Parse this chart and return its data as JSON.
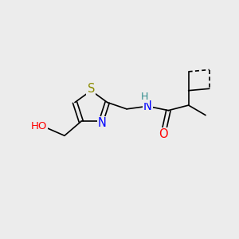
{
  "bg_color": "#ececec",
  "bond_color": "#000000",
  "bond_width": 1.2,
  "atom_colors": {
    "S": "#8b8b00",
    "N": "#0000ff",
    "O": "#ff0000",
    "H": "#2e8b8b",
    "C": "#000000"
  },
  "font_size": 9.5,
  "figsize": [
    3.0,
    3.0
  ],
  "dpi": 100,
  "xlim": [
    0,
    10
  ],
  "ylim": [
    0,
    10
  ]
}
